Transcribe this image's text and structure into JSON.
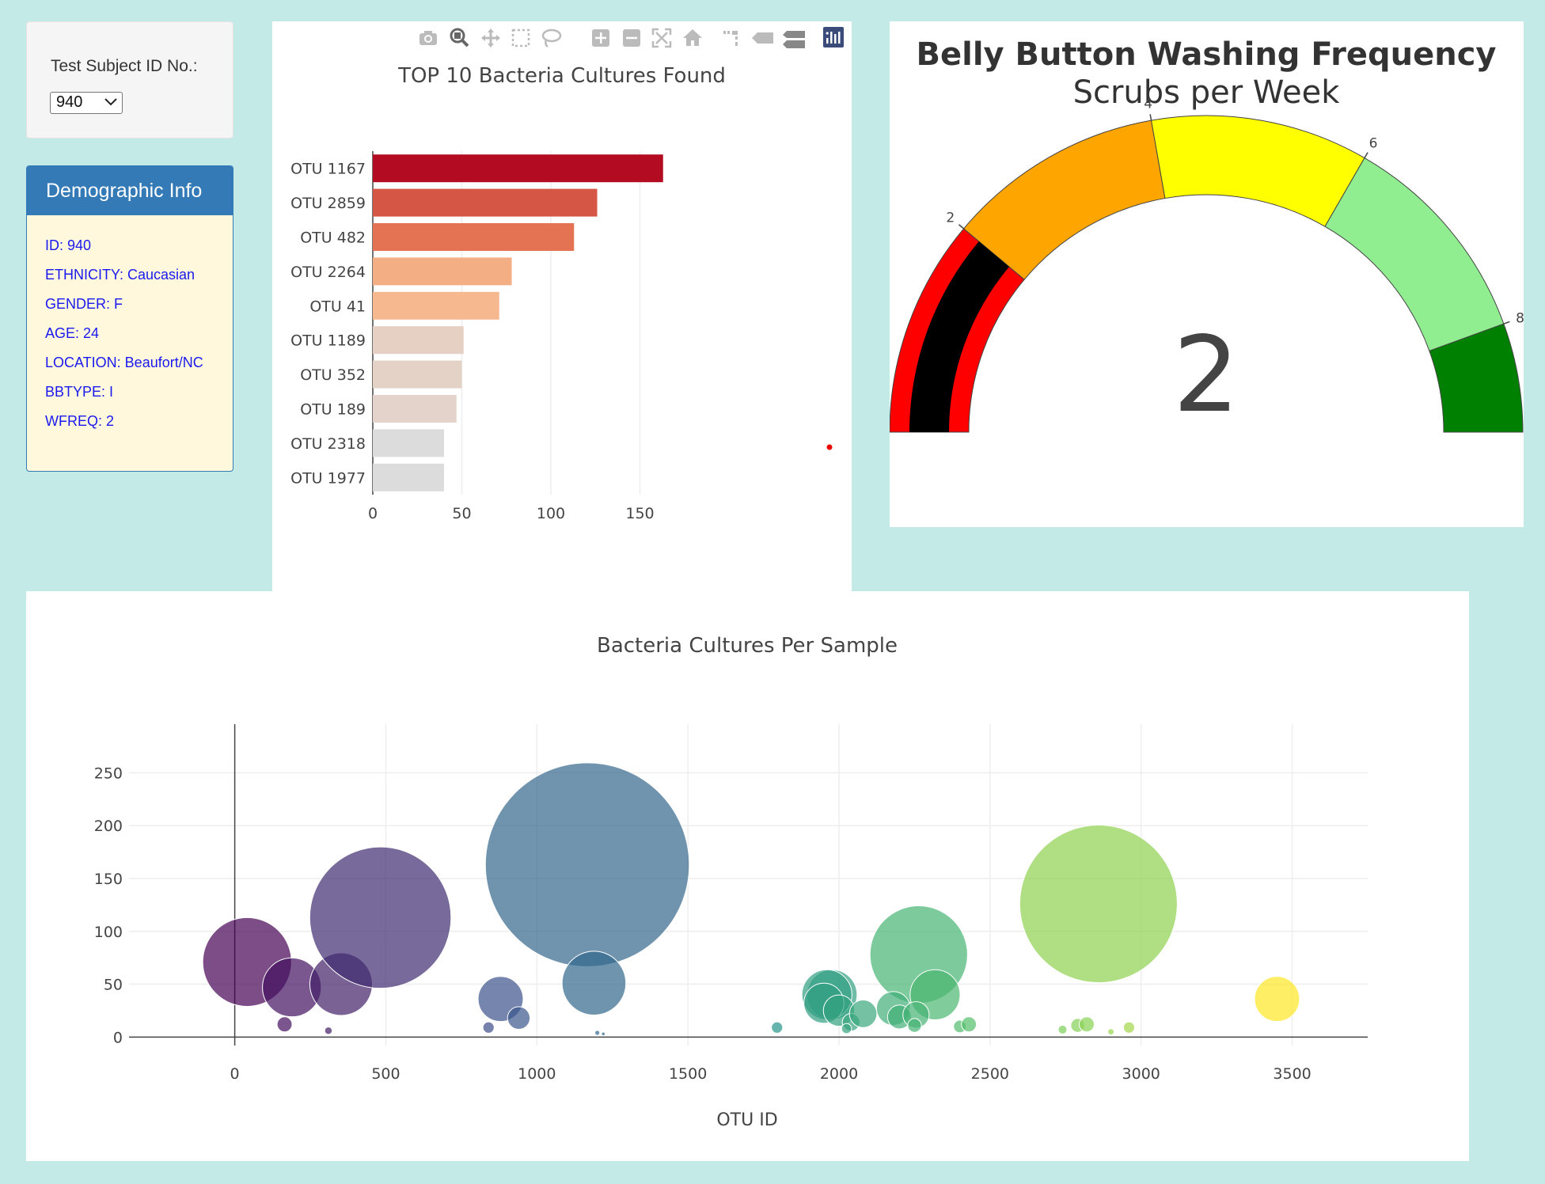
{
  "selector": {
    "label": "Test Subject ID No.:",
    "value": "940"
  },
  "demographics": {
    "header": "Demographic Info",
    "lines": [
      "ID: 940",
      "ETHNICITY: Caucasian",
      "GENDER: F",
      "AGE: 24",
      "LOCATION: Beaufort/NC",
      "BBTYPE: I",
      "WFREQ: 2"
    ]
  },
  "toolbar": {
    "icons": [
      "camera-icon",
      "zoom-icon",
      "pan-icon",
      "box-select-icon",
      "lasso-select-icon",
      "zoom-in-icon",
      "zoom-out-icon",
      "autoscale-icon",
      "reset-axes-icon",
      "spike-lines-icon",
      "hover-closest-icon",
      "hover-compare-icon",
      "plotly-logo-icon"
    ]
  },
  "chart_data": [
    {
      "type": "bar",
      "orientation": "horizontal",
      "title": "TOP 10 Bacteria Cultures Found",
      "categories": [
        "OTU 1167",
        "OTU 2859",
        "OTU 482",
        "OTU 2264",
        "OTU 41",
        "OTU 1189",
        "OTU 352",
        "OTU 189",
        "OTU 2318",
        "OTU 1977"
      ],
      "values": [
        163,
        126,
        113,
        78,
        71,
        51,
        50,
        47,
        40,
        40
      ],
      "colors": [
        "#b30b21",
        "#d55645",
        "#e47354",
        "#f4ae83",
        "#f5b88f",
        "#e6d0c3",
        "#e5d2c6",
        "#e3d3ca",
        "#dcdcdc",
        "#dcdcdc"
      ],
      "xticks": [
        0,
        50,
        100,
        150
      ],
      "xlim": [
        0,
        200
      ],
      "grid": true
    },
    {
      "type": "gauge",
      "title": "Belly Button Washing Frequency",
      "subtitle": "Scrubs per Week",
      "value": 2,
      "range": [
        0,
        9
      ],
      "bands": [
        {
          "from": 0,
          "to": 2,
          "color": "#ff0000"
        },
        {
          "from": 2,
          "to": 4,
          "color": "#ffa500"
        },
        {
          "from": 4,
          "to": 6,
          "color": "#ffff00"
        },
        {
          "from": 6,
          "to": 8,
          "color": "#90ee90"
        },
        {
          "from": 8,
          "to": 9,
          "color": "#008000"
        }
      ],
      "bar_color": "#000000",
      "ticks": [
        2,
        4,
        6,
        8
      ]
    },
    {
      "type": "scatter",
      "title": "Bacteria Cultures Per Sample",
      "xlabel": "OTU ID",
      "ylabel": "",
      "xlim": [
        -350,
        3750
      ],
      "ylim": [
        -8,
        296
      ],
      "xticks": [
        0,
        500,
        1000,
        1500,
        2000,
        2500,
        3000,
        3500
      ],
      "yticks": [
        0,
        50,
        100,
        150,
        200,
        250
      ],
      "grid": true,
      "x": [
        41,
        189,
        352,
        482,
        1167,
        1189,
        1977,
        2264,
        2318,
        2859,
        3450,
        165,
        310,
        840,
        880,
        940,
        1795,
        1960,
        1950,
        2000,
        2040,
        2080,
        2180,
        2200,
        2255,
        2250,
        2400,
        2430,
        2740,
        2790,
        2820,
        2960,
        2025,
        1200,
        1220,
        2900
      ],
      "y": [
        71,
        47,
        50,
        113,
        163,
        51,
        40,
        78,
        40,
        126,
        36,
        12,
        6,
        9,
        36,
        18,
        9,
        40,
        32,
        25,
        14,
        22,
        27,
        19,
        21,
        11,
        10,
        12,
        7,
        11,
        12,
        9,
        8,
        4,
        3,
        5
      ],
      "sizes": [
        71,
        47,
        50,
        113,
        163,
        51,
        40,
        78,
        40,
        126,
        36,
        12,
        6,
        9,
        36,
        18,
        9,
        40,
        32,
        25,
        14,
        22,
        27,
        19,
        21,
        11,
        10,
        12,
        7,
        11,
        12,
        9,
        8,
        4,
        3,
        5
      ]
    }
  ]
}
